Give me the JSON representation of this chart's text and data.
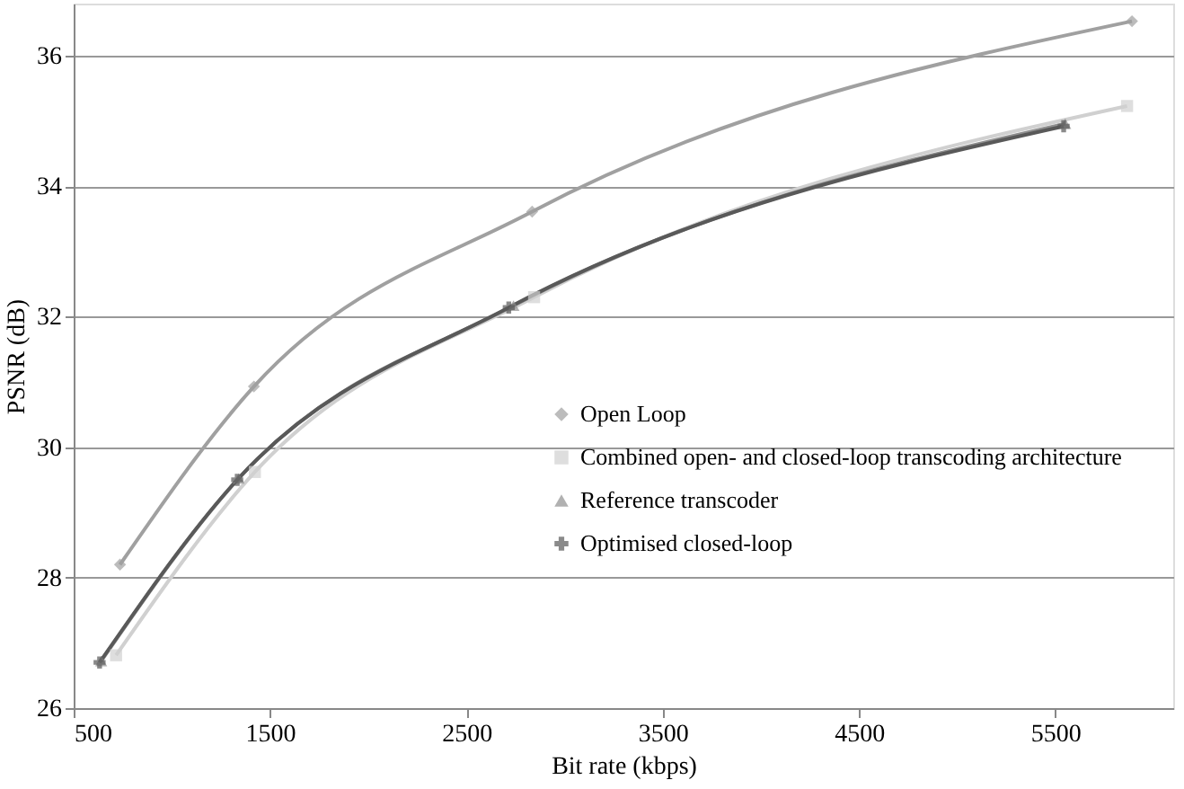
{
  "chart_data": {
    "type": "line",
    "xlabel": "Bit rate (kbps)",
    "ylabel": "PSNR (dB)",
    "xlim": [
      500,
      6100
    ],
    "xticks": [
      500,
      1500,
      2500,
      3500,
      4500,
      5500
    ],
    "ylim": [
      26,
      36.8
    ],
    "yticks": [
      26,
      28,
      30,
      32,
      34,
      36
    ],
    "grid": "y",
    "legend": "right",
    "series": [
      {
        "name": "Open Loop",
        "color": "#a0a0a0",
        "marker": "diamond",
        "x": [
          736,
          1418,
          2835,
          5890
        ],
        "values": [
          28.2,
          30.93,
          33.61,
          36.53
        ]
      },
      {
        "name": "Combined open- and closed-loop transcoding architecture",
        "color": "#d0d0d0",
        "marker": "square",
        "x": [
          716,
          1423,
          2845,
          5865
        ],
        "values": [
          26.81,
          29.62,
          32.3,
          35.23
        ]
      },
      {
        "name": "Reference transcoder",
        "color": "#909090",
        "marker": "triangle",
        "x": [
          640,
          1340,
          2740,
          5550
        ],
        "values": [
          26.72,
          29.52,
          32.17,
          34.96
        ]
      },
      {
        "name": "Optimised closed-loop",
        "color": "#595959",
        "marker": "cross",
        "x": [
          632,
          1333,
          2716,
          5542
        ],
        "values": [
          26.7,
          29.5,
          32.14,
          34.92
        ]
      }
    ]
  }
}
